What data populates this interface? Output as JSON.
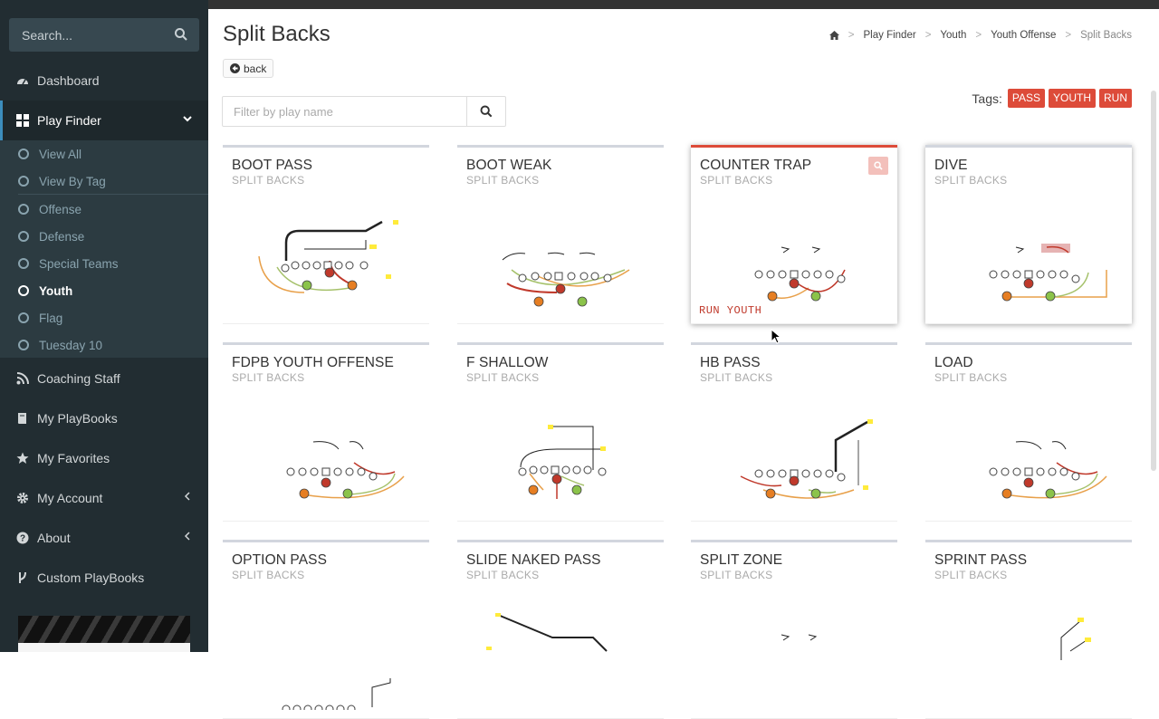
{
  "sidebar": {
    "search_placeholder": "Search...",
    "items": [
      {
        "label": "Dashboard",
        "icon": "dashboard-icon"
      },
      {
        "label": "Play Finder",
        "icon": "grid-icon"
      },
      {
        "label": "Coaching Staff",
        "icon": "rss-icon"
      },
      {
        "label": "My PlayBooks",
        "icon": "book-icon"
      },
      {
        "label": "My Favorites",
        "icon": "star-icon"
      },
      {
        "label": "My Account",
        "icon": "gear-icon"
      },
      {
        "label": "About",
        "icon": "question-icon"
      },
      {
        "label": "Custom PlayBooks",
        "icon": "branch-icon"
      }
    ],
    "submenu": [
      "View All",
      "View By Tag",
      "Offense",
      "Defense",
      "Special Teams",
      "Youth",
      "Flag",
      "Tuesday 10"
    ]
  },
  "header": {
    "title": "Split Backs",
    "back_label": "back",
    "breadcrumb": [
      "Play Finder",
      "Youth",
      "Youth Offense",
      "Split Backs"
    ]
  },
  "filter": {
    "placeholder": "Filter by play name"
  },
  "tags": {
    "label": "Tags:",
    "items": [
      "PASS",
      "YOUTH",
      "RUN"
    ]
  },
  "cards": [
    {
      "title": "BOOT PASS",
      "subtitle": "SPLIT BACKS"
    },
    {
      "title": "BOOT WEAK",
      "subtitle": "SPLIT BACKS"
    },
    {
      "title": "COUNTER TRAP",
      "subtitle": "SPLIT BACKS",
      "tags": "RUN  YOUTH"
    },
    {
      "title": "DIVE",
      "subtitle": "SPLIT BACKS"
    },
    {
      "title": "FDPB YOUTH OFFENSE",
      "subtitle": "SPLIT BACKS"
    },
    {
      "title": "F SHALLOW",
      "subtitle": "SPLIT BACKS"
    },
    {
      "title": "HB PASS",
      "subtitle": "SPLIT BACKS"
    },
    {
      "title": "LOAD",
      "subtitle": "SPLIT BACKS"
    },
    {
      "title": "OPTION PASS",
      "subtitle": "SPLIT BACKS"
    },
    {
      "title": "SLIDE NAKED PASS",
      "subtitle": "SPLIT BACKS"
    },
    {
      "title": "SPLIT ZONE",
      "subtitle": "SPLIT BACKS"
    },
    {
      "title": "SPRINT PASS",
      "subtitle": "SPLIT BACKS"
    }
  ],
  "colors": {
    "sidebar": "#222d32",
    "accent": "#3c8dbc",
    "tag": "#dd4b39"
  }
}
